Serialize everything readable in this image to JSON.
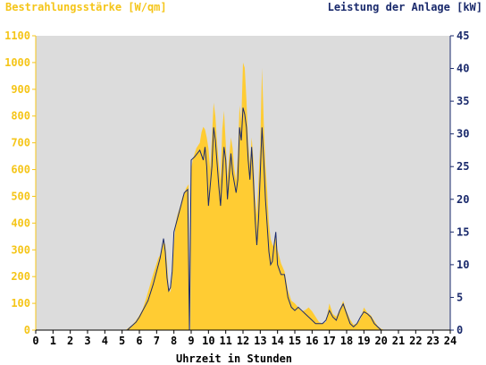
{
  "chart_data": {
    "type": "area",
    "title_left": "Bestrahlungsstärke [W/qm]",
    "title_right": "Leistung der Anlage [kW]",
    "xlabel": "Uhrzeit in Stunden",
    "xlim": [
      0,
      24
    ],
    "ylim_left": [
      0,
      1100
    ],
    "ylim_right": [
      0,
      45
    ],
    "x_ticks": [
      "0",
      "1",
      "2",
      "3",
      "4",
      "5",
      "6",
      "7",
      "8",
      "9",
      "10",
      "11",
      "12",
      "13",
      "14",
      "15",
      "16",
      "17",
      "18",
      "19",
      "20",
      "21",
      "22",
      "23",
      "24"
    ],
    "y_ticks_left": [
      "0",
      "100",
      "200",
      "300",
      "400",
      "500",
      "600",
      "700",
      "800",
      "900",
      "1000",
      "1100"
    ],
    "y_ticks_right": [
      "0",
      "5",
      "10",
      "15",
      "20",
      "25",
      "30",
      "35",
      "40",
      "45"
    ],
    "grid": false,
    "colors": {
      "irradiance": "#ffcc33",
      "power": "#1a2a6c",
      "plot_background": "#dcdcdc",
      "left_axis": "#f5c518",
      "right_axis": "#1a2a6c"
    },
    "series": [
      {
        "axis": "left",
        "style": "area",
        "points": [
          [
            0,
            0
          ],
          [
            5.2,
            0
          ],
          [
            5.4,
            10
          ],
          [
            5.6,
            20
          ],
          [
            5.8,
            35
          ],
          [
            6.0,
            55
          ],
          [
            6.2,
            80
          ],
          [
            6.4,
            120
          ],
          [
            6.6,
            165
          ],
          [
            6.8,
            210
          ],
          [
            7.0,
            250
          ],
          [
            7.1,
            270
          ],
          [
            7.2,
            280
          ],
          [
            7.3,
            300
          ],
          [
            7.4,
            330
          ],
          [
            7.5,
            320
          ],
          [
            7.6,
            250
          ],
          [
            7.7,
            160
          ],
          [
            7.8,
            140
          ],
          [
            7.9,
            200
          ],
          [
            8.0,
            320
          ],
          [
            8.1,
            400
          ],
          [
            8.2,
            430
          ],
          [
            8.3,
            450
          ],
          [
            8.4,
            470
          ],
          [
            8.5,
            500
          ],
          [
            8.6,
            510
          ],
          [
            8.7,
            530
          ],
          [
            8.8,
            540
          ],
          [
            8.85,
            545
          ],
          [
            8.9,
            0
          ],
          [
            8.95,
            0
          ],
          [
            9.0,
            600
          ],
          [
            9.1,
            640
          ],
          [
            9.3,
            680
          ],
          [
            9.5,
            700
          ],
          [
            9.6,
            740
          ],
          [
            9.7,
            760
          ],
          [
            9.8,
            750
          ],
          [
            9.9,
            720
          ],
          [
            10.0,
            680
          ],
          [
            10.1,
            600
          ],
          [
            10.2,
            720
          ],
          [
            10.3,
            850
          ],
          [
            10.4,
            800
          ],
          [
            10.5,
            700
          ],
          [
            10.6,
            620
          ],
          [
            10.7,
            560
          ],
          [
            10.8,
            750
          ],
          [
            10.9,
            820
          ],
          [
            11.0,
            700
          ],
          [
            11.1,
            570
          ],
          [
            11.2,
            650
          ],
          [
            11.3,
            720
          ],
          [
            11.4,
            680
          ],
          [
            11.5,
            600
          ],
          [
            11.6,
            560
          ],
          [
            11.7,
            650
          ],
          [
            11.8,
            840
          ],
          [
            11.9,
            780
          ],
          [
            12.0,
            1000
          ],
          [
            12.1,
            980
          ],
          [
            12.2,
            860
          ],
          [
            12.3,
            700
          ],
          [
            12.4,
            620
          ],
          [
            12.5,
            720
          ],
          [
            12.6,
            640
          ],
          [
            12.7,
            500
          ],
          [
            12.8,
            430
          ],
          [
            12.9,
            560
          ],
          [
            13.0,
            700
          ],
          [
            13.1,
            980
          ],
          [
            13.2,
            780
          ],
          [
            13.3,
            620
          ],
          [
            13.4,
            520
          ],
          [
            13.5,
            400
          ],
          [
            13.6,
            340
          ],
          [
            13.7,
            320
          ],
          [
            13.8,
            310
          ],
          [
            13.9,
            360
          ],
          [
            14.0,
            300
          ],
          [
            14.2,
            250
          ],
          [
            14.4,
            220
          ],
          [
            14.6,
            150
          ],
          [
            14.8,
            110
          ],
          [
            15.0,
            100
          ],
          [
            15.2,
            85
          ],
          [
            15.4,
            70
          ],
          [
            15.6,
            75
          ],
          [
            15.8,
            85
          ],
          [
            16.0,
            70
          ],
          [
            16.2,
            50
          ],
          [
            16.4,
            30
          ],
          [
            16.6,
            25
          ],
          [
            16.8,
            30
          ],
          [
            17.0,
            100
          ],
          [
            17.2,
            60
          ],
          [
            17.4,
            50
          ],
          [
            17.6,
            75
          ],
          [
            17.8,
            110
          ],
          [
            18.0,
            70
          ],
          [
            18.2,
            40
          ],
          [
            18.4,
            20
          ],
          [
            18.6,
            25
          ],
          [
            18.8,
            40
          ],
          [
            19.0,
            85
          ],
          [
            19.2,
            65
          ],
          [
            19.4,
            55
          ],
          [
            19.6,
            35
          ],
          [
            19.8,
            15
          ],
          [
            20.0,
            5
          ],
          [
            20.2,
            0
          ],
          [
            24,
            0
          ]
        ]
      },
      {
        "axis": "right",
        "style": "line",
        "points": [
          [
            0,
            0
          ],
          [
            5.3,
            0
          ],
          [
            5.5,
            0.5
          ],
          [
            5.8,
            1.2
          ],
          [
            6.0,
            2
          ],
          [
            6.2,
            3
          ],
          [
            6.5,
            4.5
          ],
          [
            6.8,
            7
          ],
          [
            7.0,
            9
          ],
          [
            7.2,
            11
          ],
          [
            7.4,
            14
          ],
          [
            7.5,
            12
          ],
          [
            7.6,
            8
          ],
          [
            7.7,
            6
          ],
          [
            7.8,
            6.5
          ],
          [
            7.9,
            9
          ],
          [
            8.0,
            15
          ],
          [
            8.2,
            17
          ],
          [
            8.4,
            19
          ],
          [
            8.6,
            21
          ],
          [
            8.8,
            21.5
          ],
          [
            8.9,
            0
          ],
          [
            9.0,
            26
          ],
          [
            9.2,
            26.5
          ],
          [
            9.5,
            27.5
          ],
          [
            9.7,
            26
          ],
          [
            9.8,
            28
          ],
          [
            9.9,
            25
          ],
          [
            10.0,
            19
          ],
          [
            10.2,
            25
          ],
          [
            10.3,
            31
          ],
          [
            10.4,
            29
          ],
          [
            10.6,
            22
          ],
          [
            10.7,
            19
          ],
          [
            10.9,
            28
          ],
          [
            11.0,
            26
          ],
          [
            11.1,
            20
          ],
          [
            11.3,
            27
          ],
          [
            11.4,
            24
          ],
          [
            11.6,
            21
          ],
          [
            11.7,
            23
          ],
          [
            11.8,
            31
          ],
          [
            11.9,
            29
          ],
          [
            12.0,
            34
          ],
          [
            12.1,
            33
          ],
          [
            12.2,
            31
          ],
          [
            12.3,
            26
          ],
          [
            12.4,
            23
          ],
          [
            12.5,
            28
          ],
          [
            12.6,
            23
          ],
          [
            12.7,
            17
          ],
          [
            12.8,
            13
          ],
          [
            12.9,
            17
          ],
          [
            13.0,
            24
          ],
          [
            13.1,
            31
          ],
          [
            13.2,
            26
          ],
          [
            13.3,
            20
          ],
          [
            13.4,
            16
          ],
          [
            13.5,
            12
          ],
          [
            13.6,
            10
          ],
          [
            13.7,
            10.5
          ],
          [
            13.8,
            13
          ],
          [
            13.9,
            15
          ],
          [
            14.0,
            10
          ],
          [
            14.2,
            8.5
          ],
          [
            14.4,
            8.5
          ],
          [
            14.6,
            5
          ],
          [
            14.8,
            3.5
          ],
          [
            15.0,
            3
          ],
          [
            15.2,
            3.5
          ],
          [
            15.4,
            3
          ],
          [
            15.6,
            2.5
          ],
          [
            15.8,
            2
          ],
          [
            16.0,
            1.5
          ],
          [
            16.2,
            1
          ],
          [
            16.4,
            1
          ],
          [
            16.6,
            1
          ],
          [
            16.8,
            1.5
          ],
          [
            17.0,
            3
          ],
          [
            17.2,
            2
          ],
          [
            17.4,
            1.5
          ],
          [
            17.6,
            3
          ],
          [
            17.8,
            4
          ],
          [
            18.0,
            2.5
          ],
          [
            18.2,
            1
          ],
          [
            18.4,
            0.5
          ],
          [
            18.6,
            1
          ],
          [
            18.8,
            2
          ],
          [
            19.0,
            2.8
          ],
          [
            19.2,
            2.5
          ],
          [
            19.4,
            2
          ],
          [
            19.6,
            1
          ],
          [
            19.8,
            0.5
          ],
          [
            20.0,
            0
          ],
          [
            24,
            0
          ]
        ]
      }
    ]
  }
}
